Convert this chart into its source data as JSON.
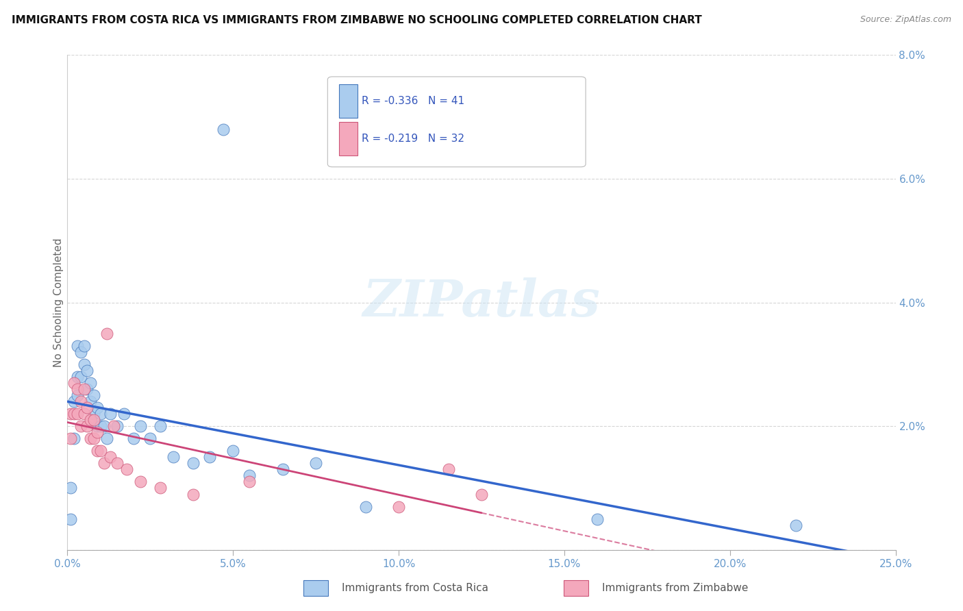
{
  "title": "IMMIGRANTS FROM COSTA RICA VS IMMIGRANTS FROM ZIMBABWE NO SCHOOLING COMPLETED CORRELATION CHART",
  "source": "Source: ZipAtlas.com",
  "ylabel": "No Schooling Completed",
  "xlim": [
    0.0,
    0.25
  ],
  "ylim": [
    0.0,
    0.08
  ],
  "xtick_vals": [
    0.0,
    0.05,
    0.1,
    0.15,
    0.2,
    0.25
  ],
  "ytick_vals": [
    0.0,
    0.02,
    0.04,
    0.06,
    0.08
  ],
  "xtick_labels": [
    "0.0%",
    "5.0%",
    "10.0%",
    "15.0%",
    "20.0%",
    "25.0%"
  ],
  "ytick_labels": [
    "",
    "2.0%",
    "4.0%",
    "6.0%",
    "8.0%"
  ],
  "costa_rica_color": "#aaccee",
  "zimbabwe_color": "#f4a8bc",
  "costa_rica_edge": "#4477bb",
  "zimbabwe_edge": "#cc5577",
  "costa_rica_line_color": "#3366cc",
  "zimbabwe_line_color": "#cc4477",
  "legend_blue_label": "R = -0.336   N = 41",
  "legend_pink_label": "R = -0.219   N = 32",
  "legend_r_color": "#3355bb",
  "costa_rica_label": "Immigrants from Costa Rica",
  "zimbabwe_label": "Immigrants from Zimbabwe",
  "watermark": "ZIPatlas",
  "tick_color": "#6699cc",
  "costa_rica_x": [
    0.001,
    0.001,
    0.002,
    0.002,
    0.003,
    0.003,
    0.003,
    0.004,
    0.004,
    0.005,
    0.005,
    0.006,
    0.006,
    0.007,
    0.007,
    0.008,
    0.008,
    0.009,
    0.009,
    0.01,
    0.01,
    0.011,
    0.012,
    0.013,
    0.015,
    0.017,
    0.02,
    0.022,
    0.025,
    0.028,
    0.032,
    0.038,
    0.043,
    0.05,
    0.055,
    0.065,
    0.075,
    0.09,
    0.16,
    0.22,
    0.047
  ],
  "costa_rica_y": [
    0.005,
    0.01,
    0.018,
    0.024,
    0.025,
    0.028,
    0.033,
    0.028,
    0.032,
    0.03,
    0.033,
    0.026,
    0.029,
    0.024,
    0.027,
    0.022,
    0.025,
    0.02,
    0.023,
    0.02,
    0.022,
    0.02,
    0.018,
    0.022,
    0.02,
    0.022,
    0.018,
    0.02,
    0.018,
    0.02,
    0.015,
    0.014,
    0.015,
    0.016,
    0.012,
    0.013,
    0.014,
    0.007,
    0.005,
    0.004,
    0.068
  ],
  "zimbabwe_x": [
    0.001,
    0.001,
    0.002,
    0.002,
    0.003,
    0.003,
    0.004,
    0.004,
    0.005,
    0.005,
    0.006,
    0.006,
    0.007,
    0.007,
    0.008,
    0.008,
    0.009,
    0.009,
    0.01,
    0.011,
    0.012,
    0.013,
    0.014,
    0.015,
    0.018,
    0.022,
    0.028,
    0.038,
    0.055,
    0.1,
    0.115,
    0.125
  ],
  "zimbabwe_y": [
    0.018,
    0.022,
    0.022,
    0.027,
    0.022,
    0.026,
    0.02,
    0.024,
    0.022,
    0.026,
    0.02,
    0.023,
    0.018,
    0.021,
    0.018,
    0.021,
    0.016,
    0.019,
    0.016,
    0.014,
    0.035,
    0.015,
    0.02,
    0.014,
    0.013,
    0.011,
    0.01,
    0.009,
    0.011,
    0.007,
    0.013,
    0.009
  ],
  "background_color": "#ffffff",
  "grid_color": "#cccccc"
}
